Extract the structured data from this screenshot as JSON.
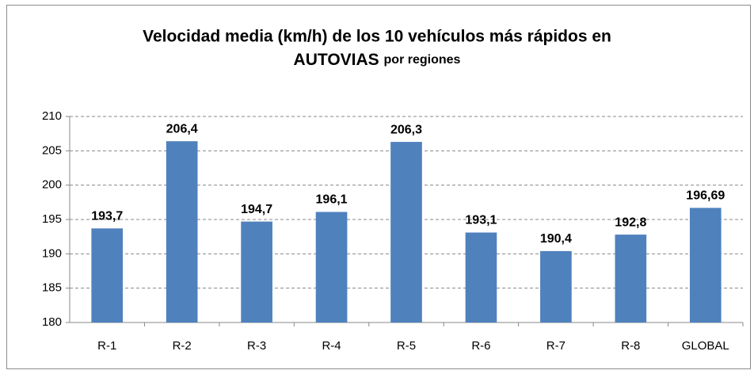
{
  "chart_data": {
    "type": "bar",
    "title": [
      "Velocidad media  (km/h) de los 10 vehículos más rápidos en",
      "AUTOVIAS",
      "por regiones"
    ],
    "categories": [
      "R-1",
      "R-2",
      "R-3",
      "R-4",
      "R-5",
      "R-6",
      "R-7",
      "R-8",
      "GLOBAL"
    ],
    "values": [
      193.7,
      206.4,
      194.7,
      196.1,
      206.3,
      193.1,
      190.4,
      192.8,
      196.69
    ],
    "value_labels": [
      "193,7",
      "206,4",
      "194,7",
      "196,1",
      "206,3",
      "193,1",
      "190,4",
      "192,8",
      "196,69"
    ],
    "color": "#4f81bd",
    "ylim": [
      180,
      210
    ],
    "yticks": [
      180,
      185,
      190,
      195,
      200,
      205,
      210
    ],
    "grid": true
  }
}
